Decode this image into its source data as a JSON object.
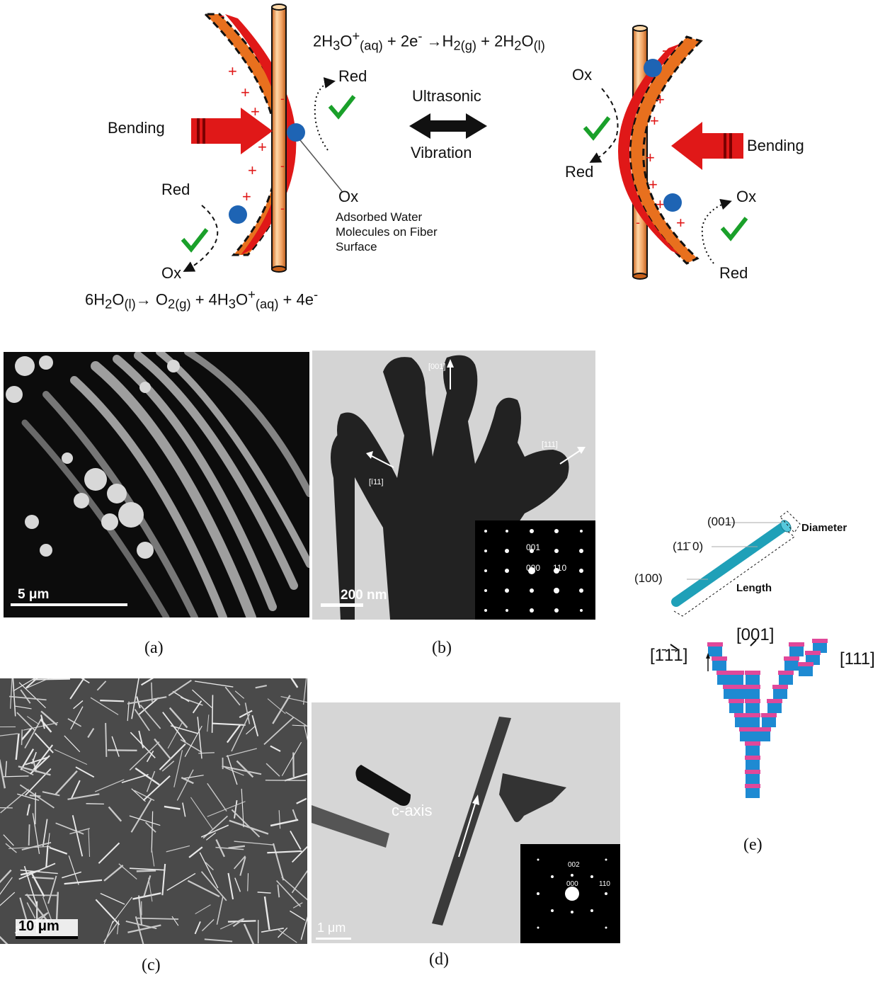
{
  "top": {
    "eq_top": {
      "part1": "2H",
      "sub1": "3",
      "part2": "O",
      "sup1": "+",
      "sub2": "(aq)",
      "part3": " + 2e",
      "sup2": "-",
      "arrow": " →",
      "part4": "H",
      "sub3": "2",
      "sub4": "(g)",
      "part5": " + 2H",
      "sub5": "2",
      "part6": "O",
      "sub6": "(l)"
    },
    "eq_bottom": {
      "part1": "6H",
      "sub1": "2",
      "part2": "O",
      "sub2": "(l)",
      "arrow": "→ ",
      "part3": "O",
      "sub3": "2",
      "sub4": "(g)",
      "part4": " + 4H",
      "sub5": "3",
      "part5": "O",
      "sup1": "+",
      "sub6": "(aq)",
      "part6": " + 4e",
      "sup2": "-"
    },
    "left_bending": "Bending",
    "right_bending": "Bending",
    "ultrasonic": "Ultrasonic",
    "vibration": "Vibration",
    "red_upper_left": "Red",
    "red_lower_left": "Red",
    "ox_lower_left": "Ox",
    "ox_center": "Ox",
    "adsorbed_1": "Adsorbed Water",
    "adsorbed_2": "Molecules on Fiber",
    "adsorbed_3": "Surface",
    "ox_right_upper": "Ox",
    "red_right_upper": "Red",
    "ox_right_lower": "Ox",
    "red_right_lower": "Red",
    "colors": {
      "fiber": "#f0a060",
      "red_band": "#e01818",
      "orange_band": "#e8701e",
      "molecule": "#1e64b4",
      "check": "#1aa02a",
      "plus": "#e01818"
    }
  },
  "panels": {
    "a": {
      "scale": "5 μm",
      "caption": "(a)"
    },
    "b": {
      "scale": "200 nm",
      "dir_001": "[001]",
      "dir_111": "[111]",
      "dir_m111": "[ī11]",
      "inset_001": "001",
      "inset_000": "000",
      "inset_110": "110",
      "caption": "(b)"
    },
    "c": {
      "scale": "10 μm",
      "caption": "(c)"
    },
    "d": {
      "scale": "1 μm",
      "axis": "c-axis",
      "inset_002": "002",
      "inset_000": "000",
      "inset_110": "110",
      "caption": "(d)"
    },
    "e": {
      "face_001": "(001)",
      "face_1m10": "(11̄ 0)",
      "face_100": "(100)",
      "diameter": "Diameter",
      "length": "Length",
      "dir_001": "[001]",
      "dir_111": "[111]",
      "dir_m1m11": "[1̄1̄1]",
      "caption": "(e)",
      "colors": {
        "rod": "#1fa0b8",
        "blue": "#1e8ad2",
        "pink": "#e0489a"
      }
    }
  }
}
